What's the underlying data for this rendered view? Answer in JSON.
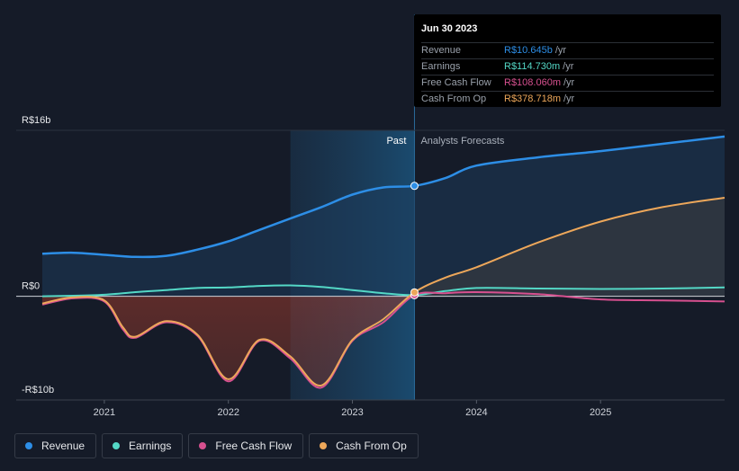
{
  "chart_data": {
    "type": "area",
    "title": "",
    "y_unit_prefix": "R$",
    "ylim": [
      -10,
      16
    ],
    "xlim": [
      2020.5,
      2026.0
    ],
    "y_ticks": [
      {
        "value": 16,
        "label": "R$16b"
      },
      {
        "value": 0,
        "label": "R$0"
      },
      {
        "value": -10,
        "label": "-R$10b"
      }
    ],
    "x_ticks": [
      {
        "value": 2021,
        "label": "2021"
      },
      {
        "value": 2022,
        "label": "2022"
      },
      {
        "value": 2023,
        "label": "2023"
      },
      {
        "value": 2024,
        "label": "2024"
      },
      {
        "value": 2025,
        "label": "2025"
      }
    ],
    "past_region_start": 2022.5,
    "divider": 2023.5,
    "past_label": "Past",
    "forecast_label": "Analysts Forecasts",
    "series": [
      {
        "name": "Revenue",
        "color": "#2d8ee6",
        "x": [
          2020.5,
          2020.75,
          2021.0,
          2021.25,
          2021.5,
          2021.75,
          2022.0,
          2022.25,
          2022.5,
          2022.75,
          2023.0,
          2023.25,
          2023.5,
          2023.75,
          2024.0,
          2024.5,
          2025.0,
          2025.5,
          2026.0
        ],
        "values": [
          4.1,
          4.2,
          4.0,
          3.8,
          3.9,
          4.5,
          5.3,
          6.4,
          7.5,
          8.6,
          9.8,
          10.5,
          10.645,
          11.4,
          12.6,
          13.4,
          14.0,
          14.7,
          15.4
        ]
      },
      {
        "name": "Earnings",
        "color": "#54d8c6",
        "x": [
          2020.5,
          2020.75,
          2021.0,
          2021.25,
          2021.5,
          2021.75,
          2022.0,
          2022.25,
          2022.5,
          2022.75,
          2023.0,
          2023.25,
          2023.5,
          2023.75,
          2024.0,
          2024.5,
          2025.0,
          2025.5,
          2026.0
        ],
        "values": [
          0.0,
          0.05,
          0.15,
          0.4,
          0.6,
          0.8,
          0.85,
          1.0,
          1.05,
          0.9,
          0.6,
          0.3,
          0.115,
          0.5,
          0.8,
          0.75,
          0.7,
          0.75,
          0.85
        ]
      },
      {
        "name": "Free Cash Flow",
        "color": "#d6508f",
        "x": [
          2020.5,
          2020.75,
          2021.0,
          2021.15,
          2021.25,
          2021.5,
          2021.75,
          2022.0,
          2022.25,
          2022.5,
          2022.75,
          2023.0,
          2023.25,
          2023.5,
          2023.75,
          2024.0,
          2024.5,
          2025.0,
          2025.5,
          2026.0
        ],
        "values": [
          -0.8,
          -0.2,
          -0.5,
          -3.2,
          -4.0,
          -2.5,
          -3.8,
          -8.2,
          -4.3,
          -6.0,
          -8.8,
          -4.3,
          -2.5,
          0.108,
          0.3,
          0.4,
          0.2,
          -0.3,
          -0.4,
          -0.5
        ]
      },
      {
        "name": "Cash From Op",
        "color": "#eda75a",
        "x": [
          2020.5,
          2020.75,
          2021.0,
          2021.15,
          2021.25,
          2021.5,
          2021.75,
          2022.0,
          2022.25,
          2022.5,
          2022.75,
          2023.0,
          2023.25,
          2023.5,
          2023.75,
          2024.0,
          2024.5,
          2025.0,
          2025.5,
          2026.0
        ],
        "values": [
          -0.7,
          -0.1,
          -0.4,
          -3.0,
          -3.9,
          -2.4,
          -3.7,
          -8.0,
          -4.2,
          -5.8,
          -8.6,
          -4.2,
          -2.2,
          0.379,
          1.8,
          2.8,
          5.2,
          7.2,
          8.6,
          9.5
        ]
      }
    ],
    "tooltip": {
      "date": "Jun 30 2023",
      "unit": "/yr",
      "rows": [
        {
          "name": "Revenue",
          "value": "R$10.645b",
          "color": "#2d8ee6"
        },
        {
          "name": "Earnings",
          "value": "R$114.730m",
          "color": "#54d8c6"
        },
        {
          "name": "Free Cash Flow",
          "value": "R$108.060m",
          "color": "#d6508f"
        },
        {
          "name": "Cash From Op",
          "value": "R$378.718m",
          "color": "#eda75a"
        }
      ]
    }
  },
  "legend": [
    {
      "label": "Revenue",
      "color": "#2d8ee6"
    },
    {
      "label": "Earnings",
      "color": "#54d8c6"
    },
    {
      "label": "Free Cash Flow",
      "color": "#d6508f"
    },
    {
      "label": "Cash From Op",
      "color": "#eda75a"
    }
  ]
}
